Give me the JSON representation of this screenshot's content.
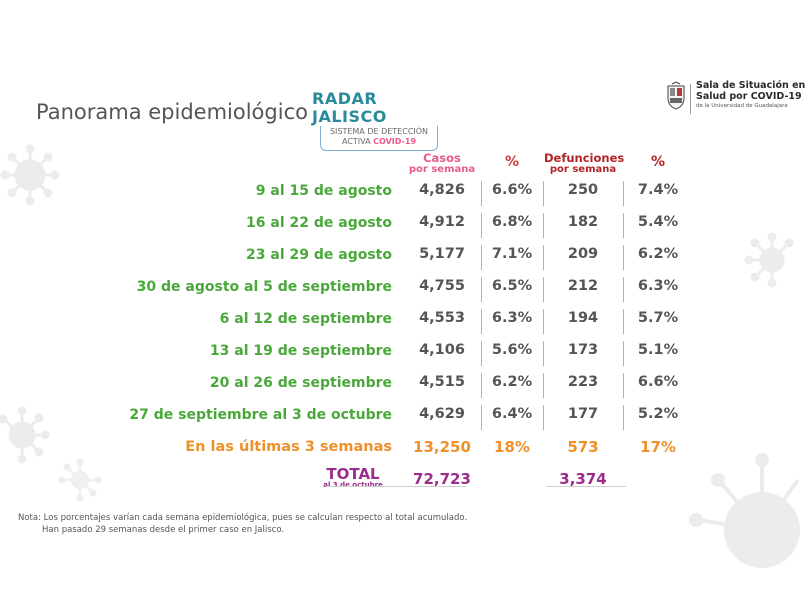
{
  "page": {
    "title": "Panorama epidemiológico"
  },
  "radar": {
    "title": "RADAR JALISCO",
    "line1": "SISTEMA DE DETECCIÓN",
    "line2_prefix": "ACTIVA",
    "line2_covid": "COVID-19"
  },
  "sala": {
    "line1": "Sala de Situación en",
    "line2": "Salud por COVID-19",
    "line3": "de la Universidad de Guadalajara",
    "logo_icon": "udg-coat-of-arms-icon"
  },
  "table": {
    "headers": {
      "casos_top": "Casos",
      "casos_sub": "por semana",
      "pct1": "%",
      "def_top": "Defunciones",
      "def_sub": "por semana",
      "pct2": "%"
    },
    "rows": [
      {
        "label": "9 al 15 de agosto",
        "casos": "4,826",
        "pct_casos": "6.6%",
        "defunciones": "250",
        "pct_def": "7.4%"
      },
      {
        "label": "16 al 22 de agosto",
        "casos": "4,912",
        "pct_casos": "6.8%",
        "defunciones": "182",
        "pct_def": "5.4%"
      },
      {
        "label": "23 al 29 de agosto",
        "casos": "5,177",
        "pct_casos": "7.1%",
        "defunciones": "209",
        "pct_def": "6.2%"
      },
      {
        "label": "30 de agosto al 5 de septiembre",
        "casos": "4,755",
        "pct_casos": "6.5%",
        "defunciones": "212",
        "pct_def": "6.3%"
      },
      {
        "label": "6 al 12 de septiembre",
        "casos": "4,553",
        "pct_casos": "6.3%",
        "defunciones": "194",
        "pct_def": "5.7%"
      },
      {
        "label": "13 al 19 de septiembre",
        "casos": "4,106",
        "pct_casos": "5.6%",
        "defunciones": "173",
        "pct_def": "5.1%"
      },
      {
        "label": "20 al 26 de septiembre",
        "casos": "4,515",
        "pct_casos": "6.2%",
        "defunciones": "223",
        "pct_def": "6.6%"
      },
      {
        "label": "27 de septiembre al 3 de octubre",
        "casos": "4,629",
        "pct_casos": "6.4%",
        "defunciones": "177",
        "pct_def": "5.2%"
      }
    ],
    "summary": {
      "label": "En las últimas 3 semanas",
      "casos": "13,250",
      "pct_casos": "18%",
      "defunciones": "573",
      "pct_def": "17%"
    },
    "total": {
      "label": "TOTAL",
      "sub": "al 3 de octubre",
      "casos": "72,723",
      "defunciones": "3,374"
    }
  },
  "notes": {
    "line1": "Nota: Los porcentajes varían cada semana epidemiológica, pues se calculan respecto al total acumulado.",
    "line2": "Han pasado 29 semanas desde el primer caso en Jalisco."
  },
  "colors": {
    "green": "#4aa83b",
    "orange": "#f0902a",
    "pink": "#e75b8c",
    "red": "#b22424",
    "purple": "#9b2c8a",
    "teal": "#2a8a9c",
    "virus_decor": "#ececec"
  },
  "decor": {
    "icon": "virus-icon"
  }
}
